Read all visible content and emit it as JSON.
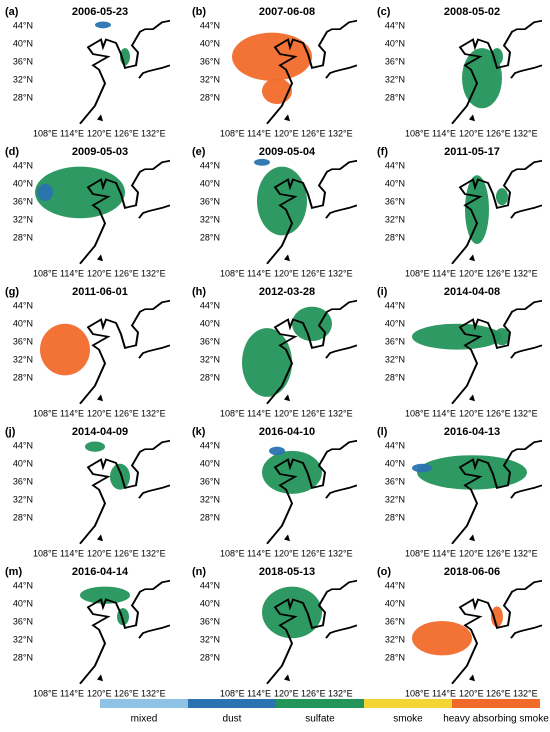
{
  "panels": [
    {
      "label": "(a)",
      "date": "2006-05-23"
    },
    {
      "label": "(b)",
      "date": "2007-06-08"
    },
    {
      "label": "(c)",
      "date": "2008-05-02"
    },
    {
      "label": "(d)",
      "date": "2009-05-03"
    },
    {
      "label": "(e)",
      "date": "2009-05-04"
    },
    {
      "label": "(f)",
      "date": "2011-05-17"
    },
    {
      "label": "(g)",
      "date": "2011-06-01"
    },
    {
      "label": "(h)",
      "date": "2012-03-28"
    },
    {
      "label": "(i)",
      "date": "2014-04-08"
    },
    {
      "label": "(j)",
      "date": "2014-04-09"
    },
    {
      "label": "(k)",
      "date": "2016-04-10"
    },
    {
      "label": "(l)",
      "date": "2016-04-13"
    },
    {
      "label": "(m)",
      "date": "2016-04-14"
    },
    {
      "label": "(n)",
      "date": "2018-05-13"
    },
    {
      "label": "(o)",
      "date": "2018-06-06"
    }
  ],
  "lat_labels": [
    "44°N",
    "40°N",
    "36°N",
    "32°N",
    "28°N"
  ],
  "lon_labels": [
    "108°E",
    "114°E",
    "120°E",
    "126°E",
    "132°E"
  ],
  "legend": [
    {
      "label": "mixed",
      "color": "#8ec3e6"
    },
    {
      "label": "dust",
      "color": "#2a73b0"
    },
    {
      "label": "sulfate",
      "color": "#23945a"
    },
    {
      "label": "smoke",
      "color": "#f3d633"
    },
    {
      "label": "heavy absorbing smoke",
      "color": "#f26a2a"
    }
  ]
}
